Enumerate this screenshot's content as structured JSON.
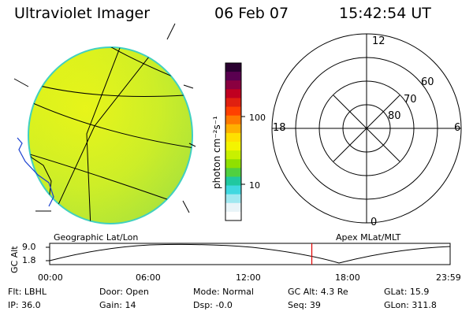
{
  "header": {
    "title": "Ultraviolet Imager",
    "date": "06 Feb 07",
    "time": "15:42:54 UT"
  },
  "geo_panel": {
    "label": "Geographic Lat/Lon"
  },
  "colorbar": {
    "unit_label": "photon cm⁻²s⁻¹",
    "ticks": [
      "100",
      "10"
    ],
    "colors": [
      "#2a0030",
      "#5a0050",
      "#8a0040",
      "#c00020",
      "#e02010",
      "#ff4000",
      "#ff7a00",
      "#ffb000",
      "#ffe000",
      "#f4f400",
      "#c8f000",
      "#90e000",
      "#50d040",
      "#20c8a0",
      "#40d8e0",
      "#a0e8f0",
      "#e8f4f8",
      "#ffffff"
    ]
  },
  "polar_panel": {
    "label": "Apex MLat/MLT",
    "mlt_labels": {
      "top": "12",
      "bottom": "0",
      "left": "18",
      "right": "6"
    },
    "mlat_labels": [
      "60",
      "70",
      "80"
    ]
  },
  "altitude_plot": {
    "axis_label": "GC Alt",
    "y_ticks": [
      "9.0",
      "1.8"
    ],
    "x_ticks": [
      "00:00",
      "06:00",
      "12:00",
      "18:00",
      "23:59"
    ],
    "current_time_marker_hours": 15.71
  },
  "info": {
    "flt": "Flt: LBHL",
    "door": "Door: Open",
    "mode": "Mode: Normal",
    "gc_alt": "GC Alt: 4.3 Re",
    "glat": "GLat:  15.9",
    "ip": "IP: 36.0",
    "gain": "Gain: 14",
    "dsp": "Dsp:   -0.0",
    "seq": "Seq: 39",
    "glon": "GLon: 311.8"
  }
}
